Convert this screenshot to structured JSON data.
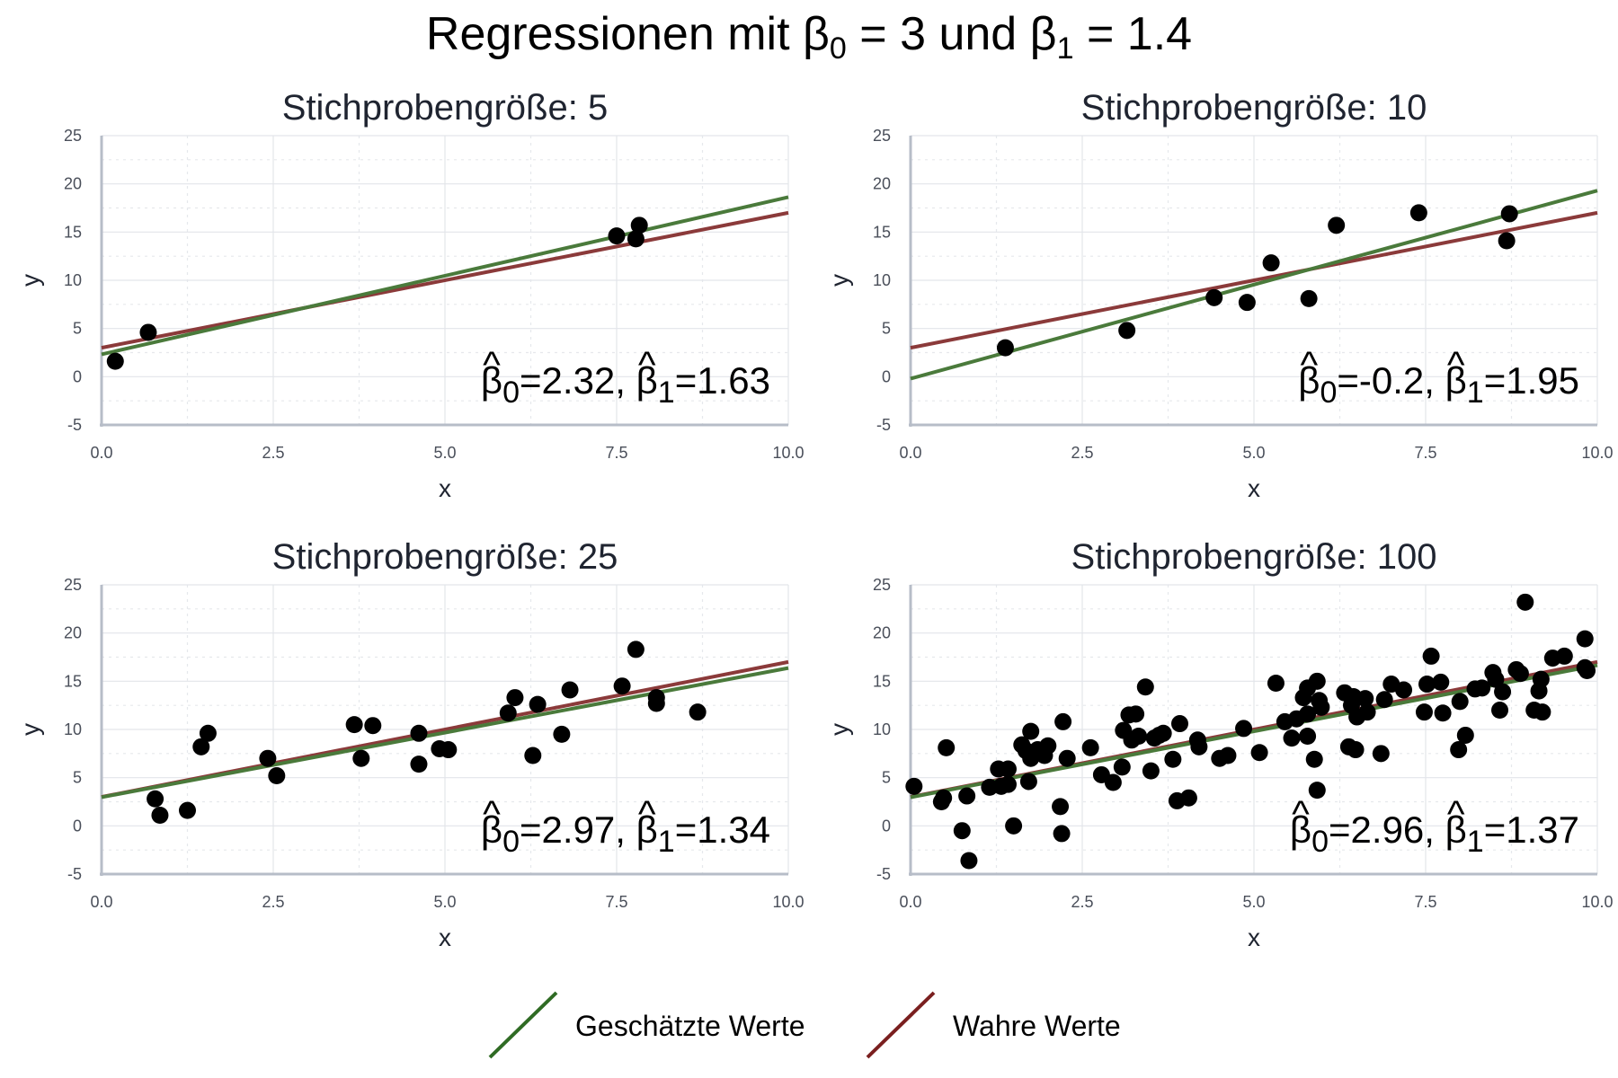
{
  "title": {
    "pre": "Regressionen mit ",
    "b0_sym": "β",
    "b0_sub": "0",
    "mid": " = 3 und ",
    "b1_sym": "β",
    "b1_sub": "1",
    "post": " = 1.4"
  },
  "colors": {
    "estimated": "#4a7a3b",
    "true": "#8b3a3a",
    "points": "#000000",
    "grid": "#e3e5ea",
    "axis": "#b7bdc8"
  },
  "legend": [
    {
      "label": "Geschätzte Werte",
      "color": "#2f6b24"
    },
    {
      "label": "Wahre Werte",
      "color": "#7a1f1f"
    }
  ],
  "chart_data": [
    {
      "type": "scatter",
      "title": "Stichprobengröße: 5",
      "xlabel": "x",
      "ylabel": "y",
      "xlim": [
        0,
        10
      ],
      "ylim": [
        -5,
        25
      ],
      "xticks": [
        "0.0",
        "2.5",
        "5.0",
        "7.5",
        "10.0"
      ],
      "yticks": [
        "-5",
        "0",
        "5",
        "10",
        "15",
        "20",
        "25"
      ],
      "annotation": {
        "hat": "^",
        "beta": "β",
        "s0": "0",
        "v0": "=2.32, ",
        "s1": "1",
        "v1": "=1.63"
      },
      "estimated_line": {
        "intercept": 2.32,
        "slope": 1.63
      },
      "true_line": {
        "intercept": 3,
        "slope": 1.4
      },
      "points": [
        [
          0.2,
          1.6
        ],
        [
          0.68,
          4.6
        ],
        [
          7.5,
          14.6
        ],
        [
          7.78,
          14.3
        ],
        [
          7.83,
          15.7
        ]
      ]
    },
    {
      "type": "scatter",
      "title": "Stichprobengröße: 10",
      "xlabel": "x",
      "ylabel": "y",
      "xlim": [
        0,
        10
      ],
      "ylim": [
        -5,
        25
      ],
      "xticks": [
        "0.0",
        "2.5",
        "5.0",
        "7.5",
        "10.0"
      ],
      "yticks": [
        "-5",
        "0",
        "5",
        "10",
        "15",
        "20",
        "25"
      ],
      "annotation": {
        "hat": "^",
        "beta": "β",
        "s0": "0",
        "v0": "=-0.2, ",
        "s1": "1",
        "v1": "=1.95"
      },
      "estimated_line": {
        "intercept": -0.2,
        "slope": 1.95
      },
      "true_line": {
        "intercept": 3,
        "slope": 1.4
      },
      "points": [
        [
          1.38,
          3.0
        ],
        [
          3.15,
          4.8
        ],
        [
          4.42,
          8.2
        ],
        [
          4.9,
          7.7
        ],
        [
          5.25,
          11.8
        ],
        [
          5.8,
          8.1
        ],
        [
          6.2,
          15.7
        ],
        [
          7.4,
          17.0
        ],
        [
          8.68,
          14.1
        ],
        [
          8.72,
          16.9
        ]
      ]
    },
    {
      "type": "scatter",
      "title": "Stichprobengröße: 25",
      "xlabel": "x",
      "ylabel": "y",
      "xlim": [
        0,
        10
      ],
      "ylim": [
        -5,
        25
      ],
      "xticks": [
        "0.0",
        "2.5",
        "5.0",
        "7.5",
        "10.0"
      ],
      "yticks": [
        "-5",
        "0",
        "5",
        "10",
        "15",
        "20",
        "25"
      ],
      "annotation": {
        "hat": "^",
        "beta": "β",
        "s0": "0",
        "v0": "=2.97, ",
        "s1": "1",
        "v1": "=1.34"
      },
      "estimated_line": {
        "intercept": 2.97,
        "slope": 1.34
      },
      "true_line": {
        "intercept": 3,
        "slope": 1.4
      },
      "points": [
        [
          0.78,
          2.8
        ],
        [
          0.85,
          1.1
        ],
        [
          1.25,
          1.6
        ],
        [
          1.45,
          8.2
        ],
        [
          1.55,
          9.6
        ],
        [
          2.42,
          7.0
        ],
        [
          2.55,
          5.2
        ],
        [
          3.68,
          10.5
        ],
        [
          3.78,
          7.0
        ],
        [
          3.95,
          10.4
        ],
        [
          4.62,
          9.6
        ],
        [
          4.62,
          6.4
        ],
        [
          4.92,
          8.0
        ],
        [
          5.05,
          7.9
        ],
        [
          5.92,
          11.7
        ],
        [
          6.02,
          13.3
        ],
        [
          6.28,
          7.3
        ],
        [
          6.35,
          12.6
        ],
        [
          6.7,
          9.5
        ],
        [
          6.82,
          14.1
        ],
        [
          7.58,
          14.5
        ],
        [
          7.78,
          18.3
        ],
        [
          8.08,
          13.3
        ],
        [
          8.08,
          12.7
        ],
        [
          8.68,
          11.8
        ]
      ]
    },
    {
      "type": "scatter",
      "title": "Stichprobengröße: 100",
      "xlabel": "x",
      "ylabel": "y",
      "xlim": [
        0,
        10
      ],
      "ylim": [
        -5,
        25
      ],
      "xticks": [
        "0.0",
        "2.5",
        "5.0",
        "7.5",
        "10.0"
      ],
      "yticks": [
        "-5",
        "0",
        "5",
        "10",
        "15",
        "20",
        "25"
      ],
      "annotation": {
        "hat": "^",
        "beta": "β",
        "s0": "0",
        "v0": "=2.96, ",
        "s1": "1",
        "v1": "=1.37"
      },
      "estimated_line": {
        "intercept": 2.96,
        "slope": 1.37
      },
      "true_line": {
        "intercept": 3,
        "slope": 1.4
      },
      "points": [
        [
          0.05,
          4.1
        ],
        [
          0.45,
          2.5
        ],
        [
          0.48,
          2.9
        ],
        [
          0.52,
          8.1
        ],
        [
          0.75,
          -0.5
        ],
        [
          0.82,
          3.1
        ],
        [
          0.85,
          -3.6
        ],
        [
          1.15,
          4.0
        ],
        [
          1.28,
          5.9
        ],
        [
          1.32,
          4.1
        ],
        [
          1.42,
          4.3
        ],
        [
          1.42,
          5.9
        ],
        [
          1.5,
          0.0
        ],
        [
          1.62,
          8.4
        ],
        [
          1.68,
          7.8
        ],
        [
          1.72,
          4.6
        ],
        [
          1.75,
          7.0
        ],
        [
          1.75,
          9.8
        ],
        [
          1.85,
          7.9
        ],
        [
          1.95,
          7.3
        ],
        [
          2.0,
          8.3
        ],
        [
          2.18,
          2.0
        ],
        [
          2.2,
          -0.8
        ],
        [
          2.22,
          10.8
        ],
        [
          2.28,
          7.0
        ],
        [
          2.62,
          8.1
        ],
        [
          2.78,
          5.3
        ],
        [
          2.95,
          4.5
        ],
        [
          3.08,
          6.1
        ],
        [
          3.1,
          9.9
        ],
        [
          3.18,
          11.5
        ],
        [
          3.22,
          8.9
        ],
        [
          3.28,
          11.6
        ],
        [
          3.32,
          9.3
        ],
        [
          3.42,
          14.4
        ],
        [
          3.5,
          5.7
        ],
        [
          3.55,
          9.1
        ],
        [
          3.62,
          9.4
        ],
        [
          3.68,
          9.6
        ],
        [
          3.82,
          6.9
        ],
        [
          3.88,
          2.6
        ],
        [
          3.92,
          10.6
        ],
        [
          4.05,
          2.9
        ],
        [
          4.18,
          8.9
        ],
        [
          4.2,
          8.2
        ],
        [
          4.5,
          7.0
        ],
        [
          4.62,
          7.3
        ],
        [
          4.85,
          10.1
        ],
        [
          5.08,
          7.6
        ],
        [
          5.32,
          14.8
        ],
        [
          5.45,
          10.8
        ],
        [
          5.55,
          9.1
        ],
        [
          5.62,
          11.1
        ],
        [
          5.72,
          13.3
        ],
        [
          5.78,
          14.3
        ],
        [
          5.78,
          9.3
        ],
        [
          5.78,
          11.6
        ],
        [
          5.88,
          6.9
        ],
        [
          5.92,
          3.7
        ],
        [
          5.92,
          15.0
        ],
        [
          5.95,
          13.0
        ],
        [
          5.98,
          12.3
        ],
        [
          6.32,
          13.8
        ],
        [
          6.38,
          8.2
        ],
        [
          6.42,
          12.5
        ],
        [
          6.45,
          13.4
        ],
        [
          6.48,
          7.9
        ],
        [
          6.5,
          11.3
        ],
        [
          6.62,
          13.2
        ],
        [
          6.65,
          11.8
        ],
        [
          6.85,
          7.5
        ],
        [
          6.9,
          13.1
        ],
        [
          7.0,
          14.7
        ],
        [
          7.18,
          14.1
        ],
        [
          7.48,
          11.8
        ],
        [
          7.52,
          14.7
        ],
        [
          7.58,
          17.6
        ],
        [
          7.72,
          14.9
        ],
        [
          7.75,
          11.7
        ],
        [
          7.98,
          7.9
        ],
        [
          8.0,
          12.9
        ],
        [
          8.08,
          9.4
        ],
        [
          8.22,
          14.2
        ],
        [
          8.32,
          14.3
        ],
        [
          8.48,
          15.9
        ],
        [
          8.52,
          15.2
        ],
        [
          8.58,
          12.0
        ],
        [
          8.62,
          13.9
        ],
        [
          8.82,
          16.2
        ],
        [
          8.88,
          15.8
        ],
        [
          8.95,
          23.2
        ],
        [
          9.08,
          12.0
        ],
        [
          9.15,
          14.0
        ],
        [
          9.18,
          15.2
        ],
        [
          9.2,
          11.8
        ],
        [
          9.35,
          17.4
        ],
        [
          9.52,
          17.6
        ],
        [
          9.82,
          19.4
        ],
        [
          9.82,
          16.4
        ],
        [
          9.85,
          16.1
        ]
      ]
    }
  ]
}
